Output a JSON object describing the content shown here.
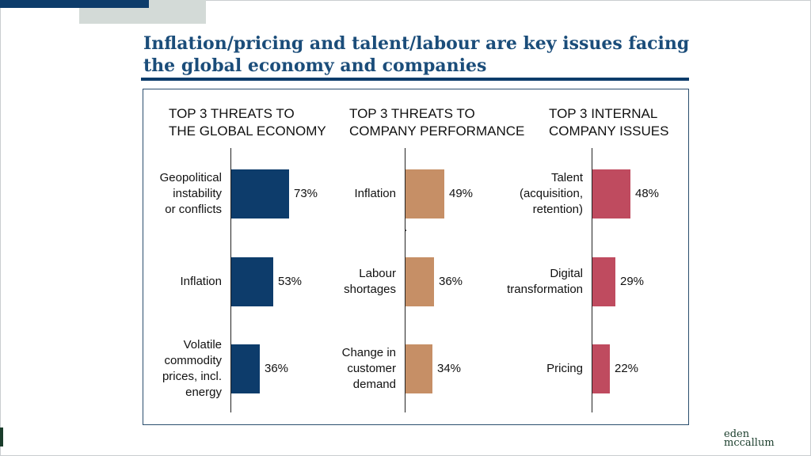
{
  "slide": {
    "title": "Inflation/pricing and talent/labour are key issues facing the global economy and companies"
  },
  "logo": {
    "line1": "eden",
    "line2": "mccallum"
  },
  "colors": {
    "navy": "#0d3c6b",
    "tan": "#c68f66",
    "rose": "#bf4b5f",
    "rule": "#0d3c6b"
  },
  "chart_data": [
    {
      "type": "bar",
      "orientation": "horizontal",
      "title": "TOP 3 THREATS TO THE GLOBAL ECONOMY",
      "title_lines": [
        "TOP 3 THREATS TO",
        "THE GLOBAL ECONOMY"
      ],
      "unit": "%",
      "xlim": [
        0,
        100
      ],
      "color": "#0d3c6b",
      "categories": [
        "Geopolitical instability or conflicts",
        "Inflation",
        "Volatile commodity prices, incl. energy"
      ],
      "category_lines": [
        [
          "Geopolitical",
          "instability",
          "or conflicts"
        ],
        [
          "Inflation"
        ],
        [
          "Volatile",
          "commodity",
          "prices, incl.",
          "energy"
        ]
      ],
      "values": [
        73,
        53,
        36
      ],
      "value_labels": [
        "73%",
        "53%",
        "36%"
      ]
    },
    {
      "type": "bar",
      "orientation": "horizontal",
      "title": "TOP 3 THREATS TO COMPANY PERFORMANCE",
      "title_lines": [
        "TOP 3 THREATS TO",
        "COMPANY PERFORMANCE"
      ],
      "unit": "%",
      "xlim": [
        0,
        100
      ],
      "color": "#c68f66",
      "categories": [
        "Inflation",
        "Labour shortages",
        "Change in customer demand"
      ],
      "category_lines": [
        [
          "Inflation"
        ],
        [
          "Labour",
          "shortages"
        ],
        [
          "Change in",
          "customer",
          "demand"
        ]
      ],
      "values": [
        49,
        36,
        34
      ],
      "value_labels": [
        "49%",
        "36%",
        "34%"
      ]
    },
    {
      "type": "bar",
      "orientation": "horizontal",
      "title": "TOP 3 INTERNAL COMPANY ISSUES",
      "title_lines": [
        "TOP 3 INTERNAL",
        "COMPANY ISSUES"
      ],
      "unit": "%",
      "xlim": [
        0,
        100
      ],
      "color": "#bf4b5f",
      "categories": [
        "Talent (acquisition, retention)",
        "Digital transformation",
        "Pricing"
      ],
      "category_lines": [
        [
          "Talent",
          "(acquisition,",
          "retention)"
        ],
        [
          "Digital",
          "transformation"
        ],
        [
          "Pricing"
        ]
      ],
      "values": [
        48,
        29,
        22
      ],
      "value_labels": [
        "48%",
        "29%",
        "22%"
      ]
    }
  ]
}
